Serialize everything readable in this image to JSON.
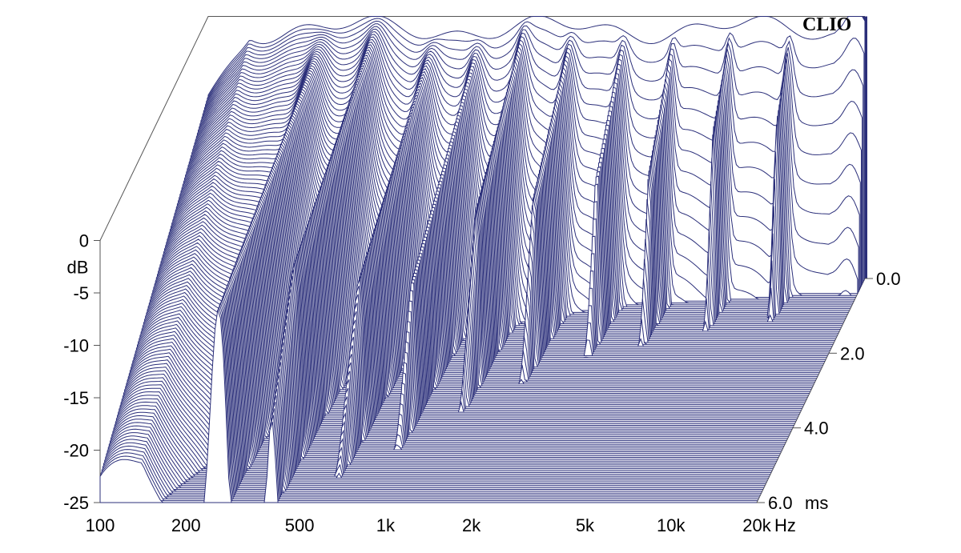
{
  "chart_data": {
    "type": "area",
    "brand": "CLIO",
    "ylabel": "dB",
    "x_unit": "Hz",
    "z_unit": "ms",
    "x_scale": "log",
    "xlim": [
      100,
      20000
    ],
    "ylim": [
      -25,
      0
    ],
    "zlim": [
      0,
      6
    ],
    "x_ticks": [
      "100",
      "200",
      "500",
      "1k",
      "2k",
      "5k",
      "10k",
      "20k"
    ],
    "x_tick_values": [
      100,
      200,
      500,
      1000,
      2000,
      5000,
      10000,
      20000
    ],
    "y_ticks": [
      "0",
      "-5",
      "-10",
      "-15",
      "-20",
      "-25"
    ],
    "y_tick_values": [
      0,
      -5,
      -10,
      -15,
      -20,
      -25
    ],
    "z_ticks": [
      "0.0",
      "2.0",
      "4.0",
      "6.0"
    ],
    "z_tick_values": [
      0,
      2,
      4,
      6
    ],
    "slice_count": 120,
    "colors": {
      "trace": "#2b2f7a",
      "fill": "#ffffff",
      "floor": "#2b2f7a",
      "axis": "#555555"
    }
  }
}
